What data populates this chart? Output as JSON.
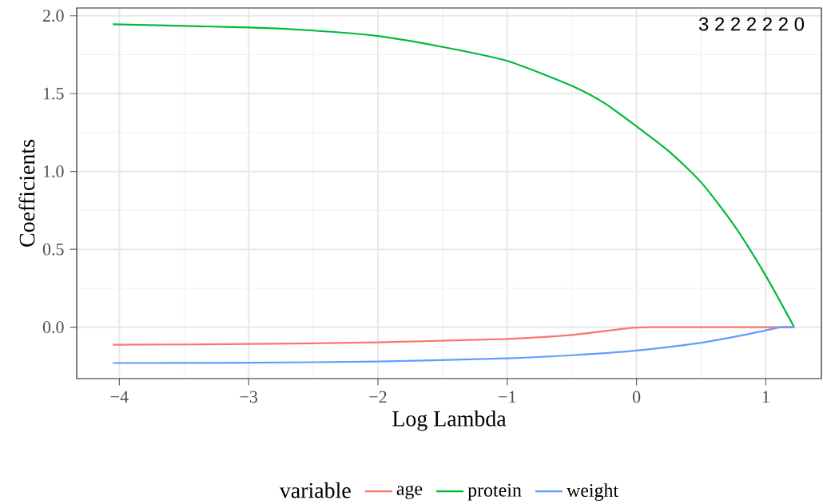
{
  "chart_data": {
    "type": "line",
    "xlabel": "Log Lambda",
    "ylabel": "Coefficients",
    "legend_title": "variable",
    "annotations": [
      "3 2 2 2  2 2 0"
    ],
    "xlim": [
      -4.33,
      1.43
    ],
    "ylim": [
      -0.33,
      2.05
    ],
    "xticks": [
      {
        "value": -4,
        "label": "−4"
      },
      {
        "value": -3,
        "label": "−3"
      },
      {
        "value": -2,
        "label": "−2"
      },
      {
        "value": -1,
        "label": "−1"
      },
      0,
      1
    ],
    "yticks": [
      {
        "value": 0,
        "label": "0.0"
      },
      {
        "value": 0.5,
        "label": "0.5"
      },
      {
        "value": 1,
        "label": "1.0"
      },
      {
        "value": 1.5,
        "label": "1.5"
      },
      {
        "value": 2,
        "label": "2.0"
      }
    ],
    "grid": true,
    "legend": "bottom",
    "line_style": "solid",
    "marker": "none",
    "series": [
      {
        "name": "age",
        "color": "#f8766d",
        "x": [
          -4.05,
          -3,
          -2,
          -1,
          -0.5,
          -0.1,
          0.1,
          1.22
        ],
        "values": [
          -0.113,
          -0.108,
          -0.097,
          -0.075,
          -0.05,
          -0.01,
          0,
          0
        ]
      },
      {
        "name": "protein",
        "color": "#00ba38",
        "x": [
          -4.05,
          -3,
          -2.5,
          -2,
          -1.5,
          -1,
          -0.5,
          -0.25,
          0,
          0.25,
          0.5,
          0.75,
          1,
          1.22
        ],
        "values": [
          1.945,
          1.925,
          1.905,
          1.87,
          1.8,
          1.71,
          1.55,
          1.44,
          1.29,
          1.13,
          0.93,
          0.66,
          0.33,
          0
        ]
      },
      {
        "name": "weight",
        "color": "#619cff",
        "x": [
          -4.05,
          -3,
          -2,
          -1,
          -0.5,
          0,
          0.5,
          0.8,
          1.0,
          1.12,
          1.22
        ],
        "values": [
          -0.23,
          -0.228,
          -0.22,
          -0.2,
          -0.18,
          -0.15,
          -0.1,
          -0.055,
          -0.02,
          0,
          0
        ]
      }
    ]
  }
}
